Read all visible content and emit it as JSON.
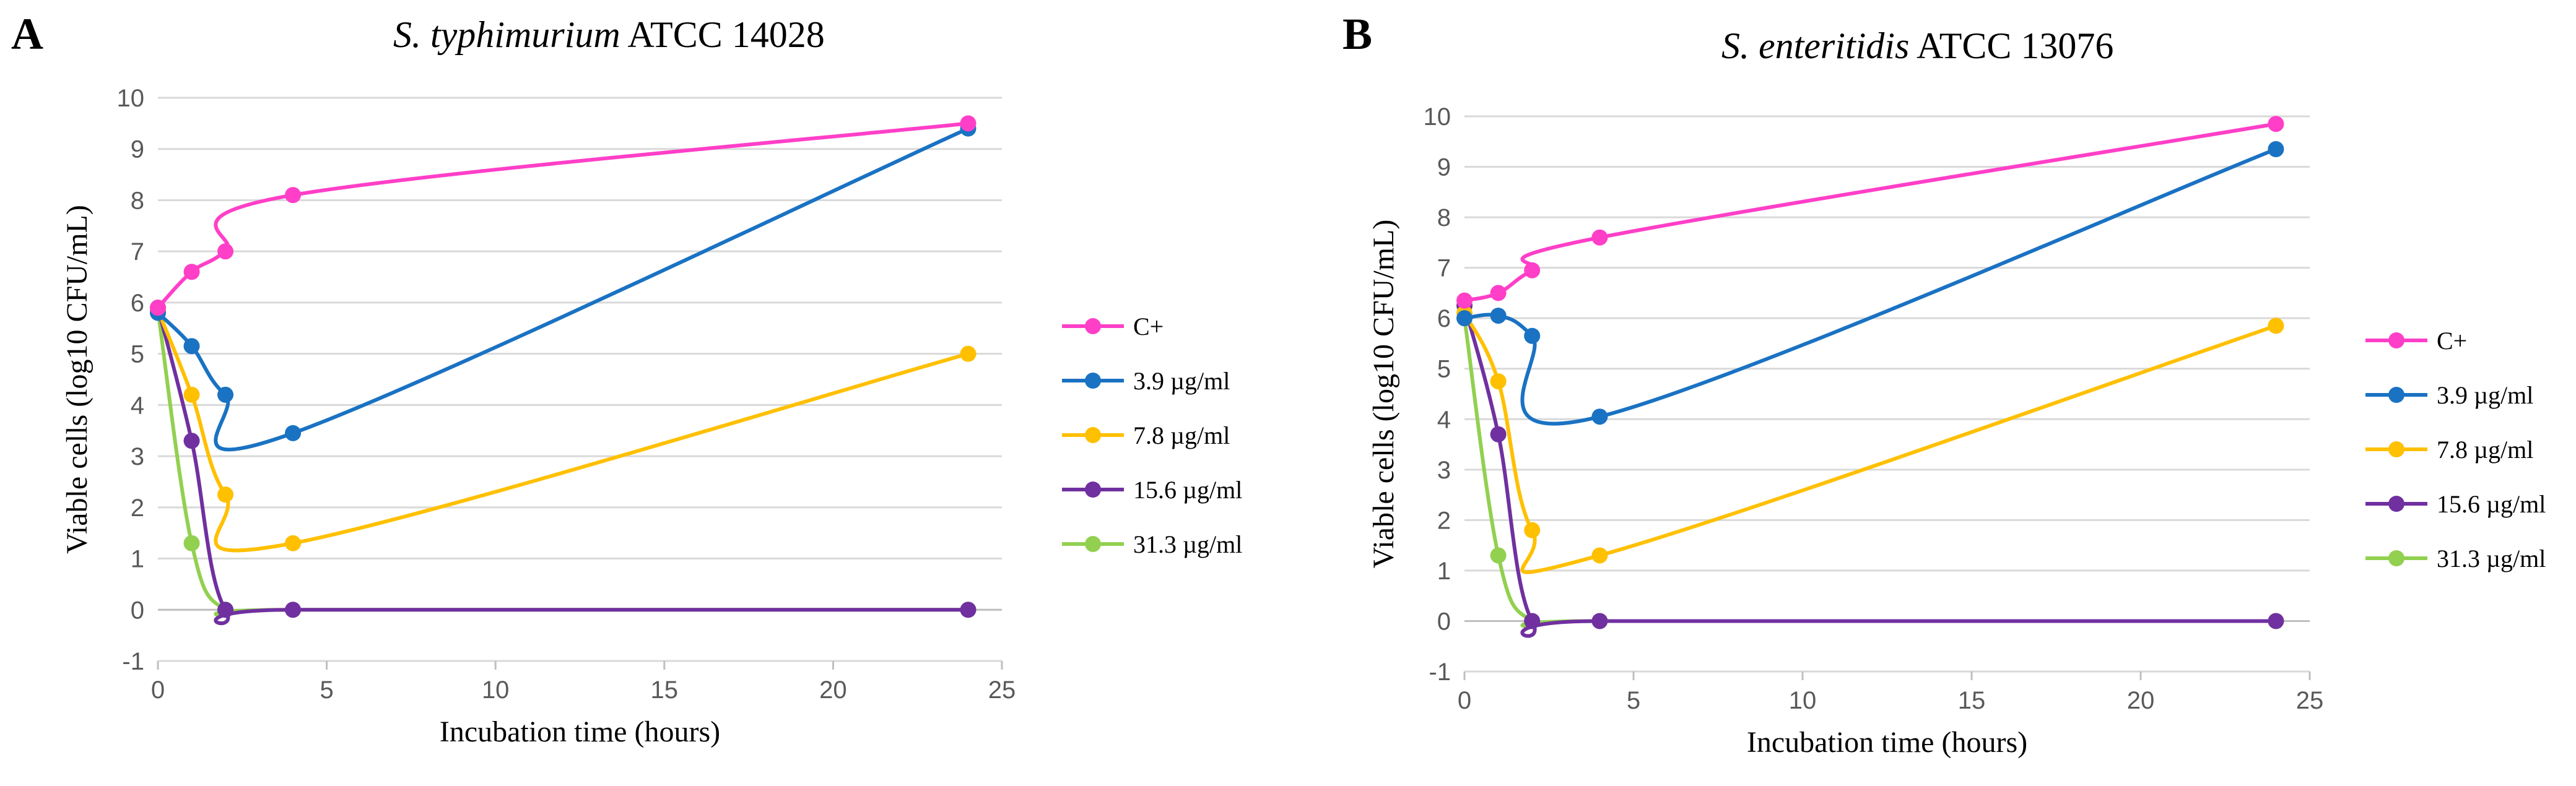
{
  "chart_data": [
    {
      "type": "line",
      "panel_label": "A",
      "title_species": "S. typhimurium",
      "title_strain": "ATCC 14028",
      "xlabel": "Incubation time (hours)",
      "ylabel": "Viable cells (log10 CFU/mL)",
      "xlim": [
        0,
        25
      ],
      "ylim": [
        -1,
        10
      ],
      "xticks": [
        "0",
        "5",
        "10",
        "15",
        "20",
        "25"
      ],
      "yticks": [
        "-1",
        "0",
        "1",
        "2",
        "3",
        "4",
        "5",
        "6",
        "7",
        "8",
        "9",
        "10"
      ],
      "grid": true,
      "legend_position": "right",
      "x": [
        0,
        1,
        2,
        4,
        24
      ],
      "series": [
        {
          "name": "C+",
          "color": "#ff3fc8",
          "values": [
            5.9,
            6.6,
            7.0,
            8.1,
            9.5
          ]
        },
        {
          "name": "3.9 µg/ml",
          "color": "#1a72c3",
          "values": [
            5.8,
            5.15,
            4.2,
            3.45,
            9.4
          ]
        },
        {
          "name": "7.8 µg/ml",
          "color": "#ffc000",
          "values": [
            5.85,
            4.2,
            2.25,
            1.3,
            5.0
          ]
        },
        {
          "name": "15.6 µg/ml",
          "color": "#7030a0",
          "values": [
            5.9,
            3.3,
            0,
            0,
            0
          ]
        },
        {
          "name": "31.3 µg/ml",
          "color": "#92d050",
          "values": [
            5.85,
            1.3,
            0,
            0,
            0
          ]
        }
      ]
    },
    {
      "type": "line",
      "panel_label": "B",
      "title_species": "S. enteritidis",
      "title_strain": "ATCC 13076",
      "xlabel": "Incubation time (hours)",
      "ylabel": "Viable cells (log10 CFU/mL)",
      "xlim": [
        0,
        25
      ],
      "ylim": [
        -1,
        10
      ],
      "xticks": [
        "0",
        "5",
        "10",
        "15",
        "20",
        "25"
      ],
      "yticks": [
        "-1",
        "0",
        "1",
        "2",
        "3",
        "4",
        "5",
        "6",
        "7",
        "8",
        "9",
        "10"
      ],
      "grid": true,
      "legend_position": "right",
      "x": [
        0,
        1,
        2,
        4,
        24
      ],
      "series": [
        {
          "name": "C+",
          "color": "#ff3fc8",
          "values": [
            6.35,
            6.5,
            6.95,
            7.6,
            9.85
          ]
        },
        {
          "name": "3.9 µg/ml",
          "color": "#1a72c3",
          "values": [
            6.0,
            6.05,
            5.65,
            4.05,
            9.35
          ]
        },
        {
          "name": "7.8 µg/ml",
          "color": "#ffc000",
          "values": [
            6.1,
            4.75,
            1.8,
            1.3,
            5.85
          ]
        },
        {
          "name": "15.6 µg/ml",
          "color": "#7030a0",
          "values": [
            6.25,
            3.7,
            0,
            0,
            0
          ]
        },
        {
          "name": "31.3 µg/ml",
          "color": "#92d050",
          "values": [
            6.0,
            1.3,
            0,
            0,
            0
          ]
        }
      ]
    }
  ]
}
